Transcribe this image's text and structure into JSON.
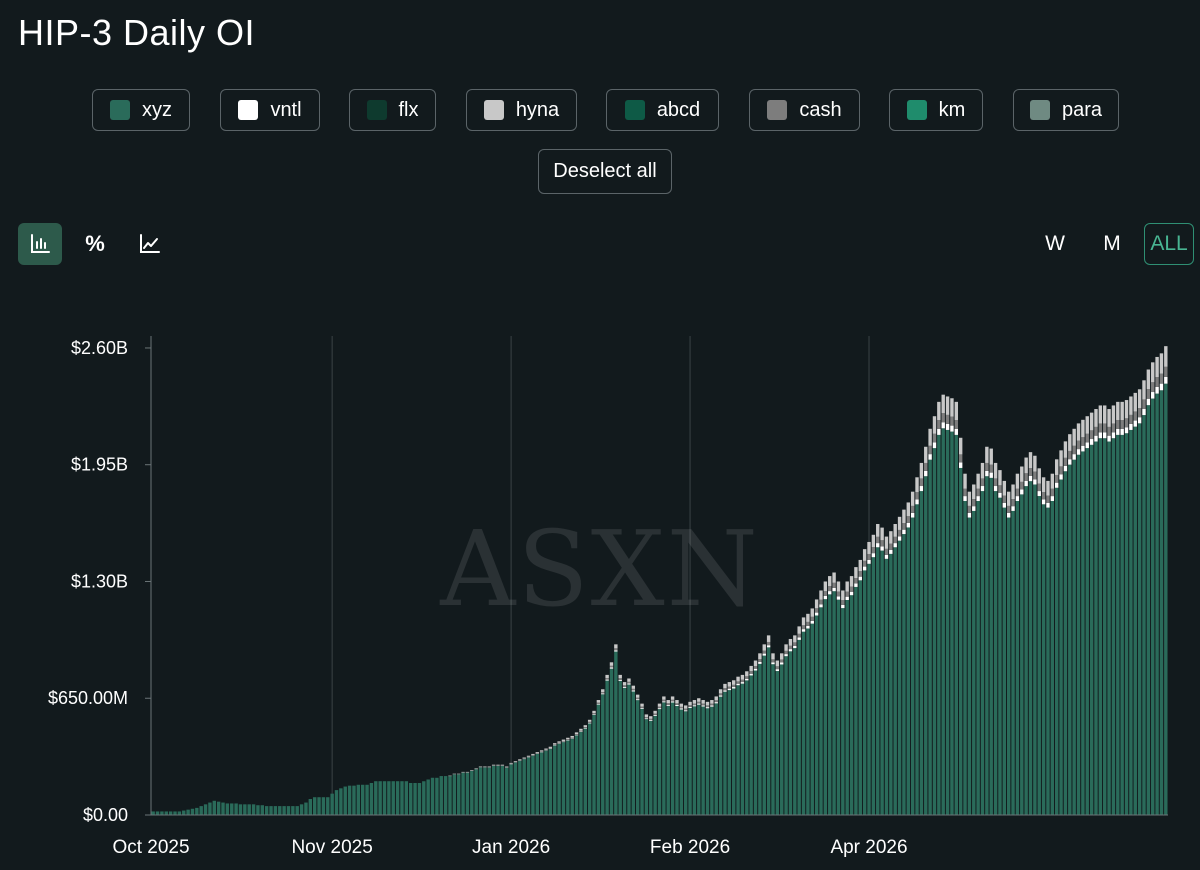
{
  "title": "HIP-3 Daily OI",
  "legend": [
    {
      "label": "xyz",
      "color": "#2a6b5a"
    },
    {
      "label": "vntl",
      "color": "#ffffff"
    },
    {
      "label": "flx",
      "color": "#0e3a2e"
    },
    {
      "label": "hyna",
      "color": "#c8c8c8"
    },
    {
      "label": "abcd",
      "color": "#0e5a46"
    },
    {
      "label": "cash",
      "color": "#7d7d7d"
    },
    {
      "label": "km",
      "color": "#1f8c6c"
    },
    {
      "label": "para",
      "color": "#6f8a82"
    }
  ],
  "deselect_label": "Deselect all",
  "mode_icons": [
    "bar-chart-icon",
    "percent-icon",
    "line-chart-icon"
  ],
  "mode_percent_glyph": "%",
  "range_buttons": [
    "W",
    "M",
    "ALL"
  ],
  "range_active": "ALL",
  "watermark": "ASXN",
  "chart_data": {
    "type": "bar",
    "stacked": true,
    "ylim": [
      0,
      2.7
    ],
    "yticks": [
      0,
      0.65,
      1.3,
      1.95,
      2.6
    ],
    "ytick_labels": [
      "$0.00",
      "$650.00M",
      "$1.30B",
      "$1.95B",
      "$2.60B"
    ],
    "xtick_labels": [
      "Oct 2025",
      "Nov 2025",
      "Jan 2026",
      "Feb 2026",
      "Apr 2026"
    ],
    "xtick_index": [
      0,
      41,
      82,
      123,
      164
    ],
    "y_unit": "USD billions",
    "grid": "vertical",
    "series_names": [
      "xyz",
      "vntl",
      "flx",
      "hyna",
      "abcd",
      "cash",
      "km",
      "para"
    ],
    "totals": [
      0.02,
      0.02,
      0.02,
      0.02,
      0.02,
      0.02,
      0.02,
      0.025,
      0.03,
      0.035,
      0.04,
      0.05,
      0.06,
      0.07,
      0.08,
      0.075,
      0.07,
      0.065,
      0.065,
      0.065,
      0.06,
      0.06,
      0.06,
      0.06,
      0.055,
      0.055,
      0.05,
      0.05,
      0.05,
      0.05,
      0.05,
      0.05,
      0.05,
      0.05,
      0.06,
      0.07,
      0.09,
      0.1,
      0.1,
      0.1,
      0.1,
      0.12,
      0.14,
      0.15,
      0.16,
      0.165,
      0.165,
      0.17,
      0.17,
      0.17,
      0.18,
      0.19,
      0.19,
      0.19,
      0.19,
      0.19,
      0.19,
      0.19,
      0.19,
      0.18,
      0.18,
      0.18,
      0.19,
      0.2,
      0.21,
      0.21,
      0.22,
      0.22,
      0.22,
      0.23,
      0.23,
      0.24,
      0.24,
      0.25,
      0.26,
      0.27,
      0.27,
      0.27,
      0.28,
      0.28,
      0.28,
      0.27,
      0.29,
      0.3,
      0.31,
      0.32,
      0.33,
      0.34,
      0.35,
      0.36,
      0.37,
      0.38,
      0.4,
      0.41,
      0.42,
      0.43,
      0.44,
      0.46,
      0.48,
      0.5,
      0.53,
      0.58,
      0.64,
      0.7,
      0.78,
      0.85,
      0.95,
      0.78,
      0.74,
      0.76,
      0.72,
      0.67,
      0.62,
      0.56,
      0.55,
      0.58,
      0.62,
      0.66,
      0.64,
      0.66,
      0.64,
      0.62,
      0.61,
      0.63,
      0.64,
      0.65,
      0.64,
      0.63,
      0.64,
      0.66,
      0.7,
      0.73,
      0.74,
      0.75,
      0.77,
      0.78,
      0.8,
      0.83,
      0.86,
      0.9,
      0.95,
      1.0,
      0.9,
      0.86,
      0.9,
      0.95,
      0.98,
      1.0,
      1.05,
      1.1,
      1.12,
      1.15,
      1.2,
      1.25,
      1.3,
      1.33,
      1.35,
      1.3,
      1.25,
      1.3,
      1.33,
      1.38,
      1.42,
      1.48,
      1.52,
      1.56,
      1.62,
      1.6,
      1.55,
      1.58,
      1.62,
      1.66,
      1.7,
      1.74,
      1.8,
      1.88,
      1.96,
      2.05,
      2.15,
      2.22,
      2.3,
      2.34,
      2.33,
      2.32,
      2.3,
      2.1,
      1.9,
      1.8,
      1.84,
      1.9,
      1.96,
      2.05,
      2.04,
      1.96,
      1.92,
      1.86,
      1.8,
      1.84,
      1.9,
      1.94,
      1.99,
      2.02,
      2.0,
      1.93,
      1.88,
      1.86,
      1.9,
      1.98,
      2.03,
      2.08,
      2.12,
      2.15,
      2.18,
      2.2,
      2.22,
      2.24,
      2.26,
      2.28,
      2.28,
      2.26,
      2.28,
      2.3,
      2.3,
      2.31,
      2.33,
      2.35,
      2.37,
      2.42,
      2.48,
      2.52,
      2.55,
      2.57,
      2.61
    ]
  }
}
